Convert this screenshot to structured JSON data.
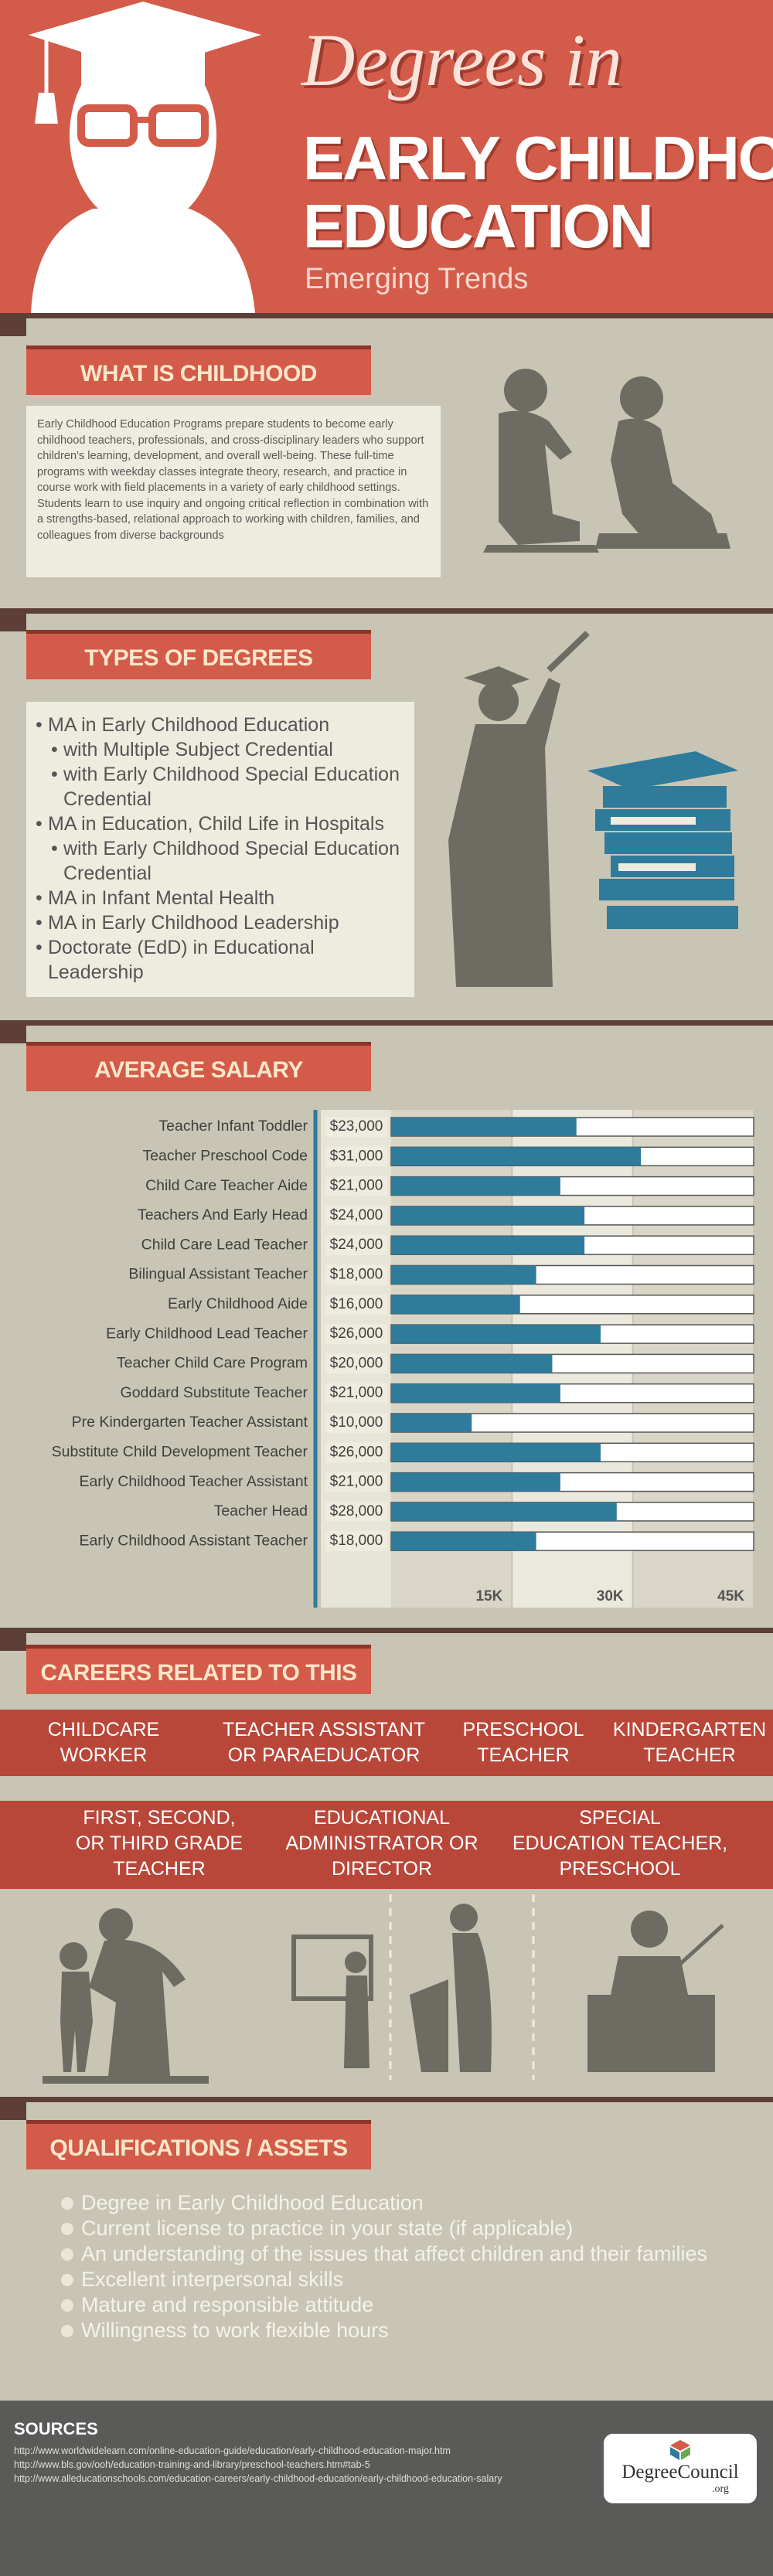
{
  "header": {
    "title_line1": "Degrees in",
    "title_line2": "EARLY CHILDHOOD",
    "title_line3": "EDUCATION",
    "subtitle": "Emerging Trends"
  },
  "what_is": {
    "heading": "WHAT IS CHILDHOOD EDUCATION ?",
    "text": "Early Childhood Education Programs prepare students to become early childhood teachers, professionals, and cross-disciplinary leaders who support children's learning, development, and overall well-being. These full-time programs with weekday classes integrate theory, research, and practice in course work with field placements in a variety of early childhood settings. Students learn to use inquiry and ongoing critical reflection in combination with a strengths-based, relational approach to working with children, families, and colleagues from diverse backgrounds"
  },
  "types": {
    "heading": "TYPES OF DEGREES",
    "items": [
      {
        "text": "MA in Early Childhood Education",
        "sub": [
          "with Multiple Subject Credential",
          "with Early Childhood Special Education Credential"
        ]
      },
      {
        "text": "MA in Education, Child Life in Hospitals",
        "sub": [
          "with Early Childhood Special Education Credential"
        ]
      },
      {
        "text": "MA in Infant Mental Health"
      },
      {
        "text": "MA in Early Childhood Leadership"
      },
      {
        "text": "Doctorate (EdD) in Educational Leadership"
      }
    ]
  },
  "chart_data": {
    "type": "bar",
    "title": "AVERAGE SALARY",
    "categories": [
      "Teacher Infant Toddler",
      "Teacher Preschool Code",
      "Child Care Teacher Aide",
      "Teachers And Early Head",
      "Child Care Lead Teacher",
      "Bilingual Assistant Teacher",
      "Early Childhood Aide",
      "Early Childhood Lead Teacher",
      "Teacher Child Care Program",
      "Goddard Substitute Teacher",
      "Pre Kindergarten Teacher Assistant",
      "Substitute Child Development Teacher",
      "Early Childhood Teacher Assistant",
      "Teacher Head",
      "Early Childhood Assistant Teacher"
    ],
    "values": [
      23000,
      31000,
      21000,
      24000,
      24000,
      18000,
      16000,
      26000,
      20000,
      21000,
      10000,
      26000,
      21000,
      28000,
      18000
    ],
    "value_labels": [
      "$23,000",
      "$31,000",
      "$21,000",
      "$24,000",
      "$24,000",
      "$18,000",
      "$16,000",
      "$26,000",
      "$20,000",
      "$21,000",
      "$10,000",
      "$26,000",
      "$21,000",
      "$28,000",
      "$18,000"
    ],
    "color": "#2f7b9b",
    "xlim": [
      0,
      45000
    ],
    "xticks": [
      {
        "value": 15000,
        "label": "15K"
      },
      {
        "value": 30000,
        "label": "30K"
      },
      {
        "value": 45000,
        "label": "45K"
      }
    ]
  },
  "careers": {
    "heading": "CAREERS RELATED TO THIS DEGREE",
    "row1": [
      [
        "CHILDCARE",
        "WORKER"
      ],
      [
        "TEACHER ASSISTANT",
        "OR PARAEDUCATOR"
      ],
      [
        "PRESCHOOL",
        "TEACHER"
      ],
      [
        "KINDERGARTEN",
        "TEACHER"
      ]
    ],
    "row2": [
      [
        "FIRST, SECOND,",
        "OR THIRD GRADE",
        "TEACHER"
      ],
      [
        "EDUCATIONAL",
        "ADMINISTRATOR OR",
        "DIRECTOR"
      ],
      [
        "SPECIAL",
        "EDUCATION TEACHER,",
        "PRESCHOOL"
      ]
    ]
  },
  "qualifications": {
    "heading": "QUALIFICATIONS / ASSETS",
    "items": [
      "Degree in Early Childhood Education",
      "Current license to practice in your state (if applicable)",
      "An understanding of the issues that affect children and their families",
      "Excellent interpersonal skills",
      "Mature and responsible attitude",
      "Willingness to work flexible hours"
    ]
  },
  "sources": {
    "heading": "SOURCES",
    "links": [
      "http://www.worldwidelearn.com/online-education-guide/education/early-childhood-education-major.htm",
      "http://www.bls.gov/ooh/education-training-and-library/preschool-teachers.htm#tab-5",
      "http://www.alleducationschools.com/education-careers/early-childhood-education/early-childhood-education-salary"
    ]
  },
  "logo": {
    "name": "DegreeCouncil",
    "suffix": ".org"
  }
}
